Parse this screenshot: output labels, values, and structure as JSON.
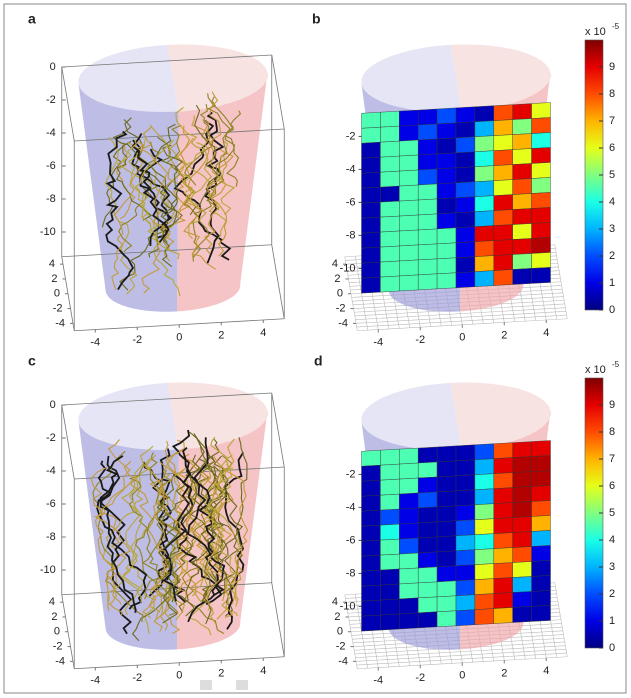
{
  "chart_data": [
    {
      "type": "roots3d",
      "label": "a",
      "xlim": [
        -5,
        5
      ],
      "ylim": [
        -5,
        5
      ],
      "zlim": [
        -11.5,
        0
      ],
      "xticks": [
        -4,
        -2,
        0,
        2,
        4
      ],
      "yticks": [
        4,
        2,
        0,
        -2,
        -4
      ],
      "zticks": [
        0,
        -2,
        -4,
        -6,
        -8,
        -10
      ]
    },
    {
      "type": "heatmap",
      "label": "b",
      "xlim": [
        -5,
        5
      ],
      "ylim": [
        -5,
        5
      ],
      "zlim": [
        -11.5,
        0
      ],
      "xticks": [
        -4,
        -2,
        0,
        2,
        4
      ],
      "yticks": [
        4,
        2,
        0,
        -2,
        -4
      ],
      "zticks": [
        -2,
        -4,
        -6,
        -8,
        -10
      ],
      "clim": [
        0,
        10
      ],
      "cticks": [
        0,
        1,
        2,
        3,
        4,
        5,
        6,
        7,
        8,
        9
      ],
      "colorbar_label": "x 10",
      "colorbar_power": "-5",
      "values": [
        [
          4.5,
          4.5,
          1,
          1,
          2,
          1,
          0.5,
          8,
          9,
          6
        ],
        [
          4.5,
          4.5,
          1,
          2,
          1,
          0.5,
          3,
          7,
          5,
          8
        ],
        [
          0.5,
          4.5,
          4.5,
          1,
          0.5,
          2,
          5,
          6,
          7,
          4
        ],
        [
          0.5,
          4.5,
          4.5,
          1,
          1,
          0.5,
          4,
          8,
          6,
          9
        ],
        [
          0.5,
          4.5,
          4.5,
          2,
          1,
          0.5,
          5,
          7,
          9,
          6
        ],
        [
          0.5,
          0.5,
          4.5,
          4.5,
          1,
          2,
          3,
          6,
          8,
          5
        ],
        [
          0.5,
          4.5,
          4.5,
          4.5,
          0.5,
          1,
          4,
          9,
          7,
          8
        ],
        [
          0.5,
          4.5,
          4.5,
          4.5,
          1,
          0.5,
          3,
          8,
          9,
          9
        ],
        [
          0.5,
          4.5,
          4.5,
          4.5,
          4.5,
          1,
          9,
          9,
          6,
          9
        ],
        [
          0.5,
          4.5,
          4.5,
          4.5,
          4.5,
          1,
          8,
          9,
          9,
          9.5
        ],
        [
          0.5,
          4.5,
          4.5,
          4.5,
          4.5,
          0.5,
          7,
          9,
          5,
          6
        ],
        [
          0.5,
          4.5,
          4.5,
          4.5,
          4.5,
          1,
          3,
          8,
          0.5,
          0.5
        ]
      ]
    },
    {
      "type": "roots3d",
      "label": "c",
      "xlim": [
        -5,
        5
      ],
      "ylim": [
        -5,
        5
      ],
      "zlim": [
        -11.5,
        0
      ],
      "xticks": [
        -4,
        -2,
        0,
        2,
        4
      ],
      "yticks": [
        4,
        2,
        0,
        -2,
        -4
      ],
      "zticks": [
        0,
        -2,
        -4,
        -6,
        -8,
        -10
      ]
    },
    {
      "type": "heatmap",
      "label": "d",
      "xlim": [
        -5,
        5
      ],
      "ylim": [
        -5,
        5
      ],
      "zlim": [
        -11.5,
        0
      ],
      "xticks": [
        -4,
        -2,
        0,
        2,
        4
      ],
      "yticks": [
        4,
        2,
        0,
        -2,
        -4
      ],
      "zticks": [
        -2,
        -4,
        -6,
        -8,
        -10
      ],
      "clim": [
        0,
        10
      ],
      "cticks": [
        0,
        1,
        2,
        3,
        4,
        5,
        6,
        7,
        8,
        9
      ],
      "colorbar_label": "x 10",
      "colorbar_power": "-5",
      "values": [
        [
          4.5,
          4.5,
          4.5,
          0.5,
          0.5,
          0.5,
          2,
          8,
          9,
          9
        ],
        [
          0.5,
          4.5,
          4.5,
          4.5,
          0.5,
          0.5,
          3,
          9,
          9.5,
          9.5
        ],
        [
          0.5,
          4.5,
          4.5,
          1,
          0.5,
          0.5,
          4,
          8,
          9.5,
          9.5
        ],
        [
          0.5,
          4.5,
          1,
          2,
          0.5,
          0.5,
          3,
          9,
          9.5,
          9
        ],
        [
          0.5,
          2,
          1,
          0.5,
          0.5,
          1,
          5,
          9,
          9.5,
          8
        ],
        [
          0.5,
          4,
          1,
          0.5,
          0.5,
          2,
          6,
          9,
          9,
          7
        ],
        [
          0.5,
          4.5,
          2,
          0.5,
          0.5,
          3,
          4,
          8,
          9,
          3
        ],
        [
          0.5,
          4.5,
          4.5,
          1,
          0.5,
          2,
          5,
          7,
          8,
          1
        ],
        [
          0.5,
          0.5,
          4.5,
          4.5,
          1,
          1,
          6,
          8,
          6,
          0.5
        ],
        [
          0.5,
          0.5,
          4.5,
          4.5,
          4.5,
          2,
          7,
          9,
          3,
          0.5
        ],
        [
          0.5,
          0.5,
          0.5,
          4.5,
          4.5,
          3,
          8,
          9,
          1,
          0.5
        ],
        [
          0.5,
          0.5,
          0.5,
          0.5,
          4.5,
          2,
          8,
          7,
          0.5,
          0.5
        ]
      ]
    }
  ]
}
